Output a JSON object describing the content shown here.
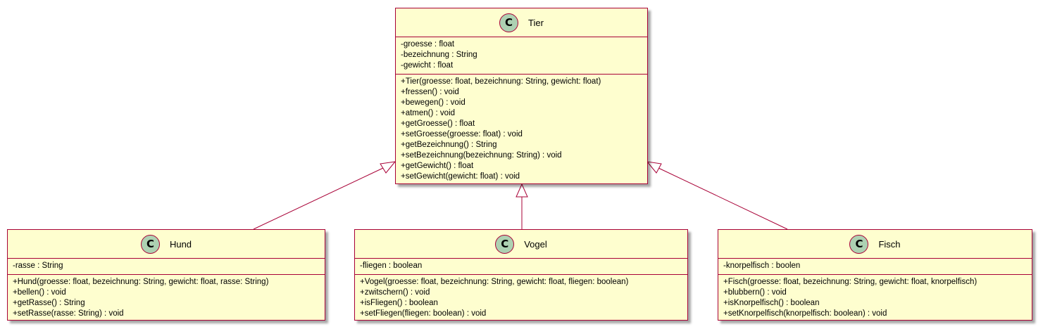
{
  "diagram": {
    "colors": {
      "border": "#a80036",
      "fill": "#fefecf",
      "circle": "#add1b2",
      "arrow_head": "#ffffff"
    },
    "stereotype_letter": "C",
    "classes": {
      "tier": {
        "name": "Tier",
        "attributes": [
          "-groesse : float",
          "-bezeichnung : String",
          "-gewicht : float"
        ],
        "methods": [
          "+Tier(groesse: float, bezeichnung: String, gewicht: float)",
          "+fressen() : void",
          "+bewegen() : void",
          "+atmen() : void",
          "+getGroesse() : float",
          "+setGroesse(groesse: float) : void",
          "+getBezeichnung() : String",
          "+setBezeichnung(bezeichnung: String) : void",
          "+getGewicht() : float",
          "+setGewicht(gewicht: float) : void"
        ]
      },
      "hund": {
        "name": "Hund",
        "attributes": [
          "-rasse : String"
        ],
        "methods": [
          "+Hund(groesse: float, bezeichnung: String, gewicht: float, rasse: String)",
          "+bellen() : void",
          "+getRasse() : String",
          "+setRasse(rasse: String) : void"
        ]
      },
      "vogel": {
        "name": "Vogel",
        "attributes": [
          "-fliegen : boolean"
        ],
        "methods": [
          "+Vogel(groesse: float, bezeichnung: String, gewicht: float, fliegen: boolean)",
          "+zwitschern() : void",
          "+isFliegen() : boolean",
          "+setFliegen(fliegen: boolean) : void"
        ]
      },
      "fisch": {
        "name": "Fisch",
        "attributes": [
          "-knorpelfisch : boolen"
        ],
        "methods": [
          "+Fisch(groesse: float, bezeichnung: String, gewicht: float, knorpelfisch)",
          "+blubbern() : void",
          "+isKnorpelfisch() : boolean",
          "+setKnorpelfisch(knorpelfisch: boolean) : void"
        ]
      }
    }
  }
}
